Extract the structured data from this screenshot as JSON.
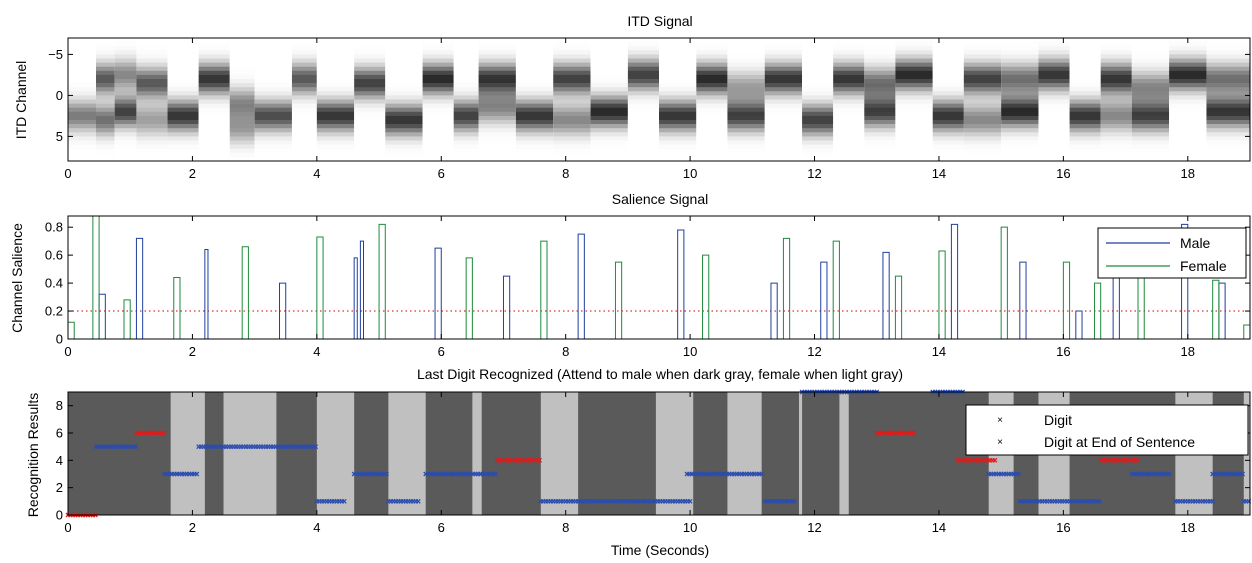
{
  "chart_data": [
    {
      "type": "heatmap",
      "title": "ITD Signal",
      "ylabel": "ITD Channel",
      "xlabel": "",
      "xlim": [
        0,
        19
      ],
      "ylim": [
        -7,
        8
      ],
      "y_reversed": true,
      "colormap": "grayscale (dark = high)",
      "xticks": [
        0,
        2,
        4,
        6,
        8,
        10,
        12,
        14,
        16,
        18
      ],
      "yticks": [
        -5,
        0,
        5
      ],
      "segments": [
        {
          "start": 0.0,
          "end": 0.45,
          "peaks": [
            [
              2.5,
              0.55
            ]
          ]
        },
        {
          "start": 0.45,
          "end": 0.75,
          "peaks": [
            [
              -2.0,
              0.7
            ],
            [
              3.0,
              0.6
            ]
          ]
        },
        {
          "start": 0.75,
          "end": 1.1,
          "peaks": [
            [
              2.0,
              0.8
            ],
            [
              -2.5,
              0.5
            ]
          ]
        },
        {
          "start": 1.1,
          "end": 1.6,
          "peaks": [
            [
              -1.5,
              0.7
            ],
            [
              3.0,
              0.4
            ]
          ]
        },
        {
          "start": 1.6,
          "end": 2.1,
          "peaks": [
            [
              2.5,
              0.85
            ]
          ]
        },
        {
          "start": 2.1,
          "end": 2.6,
          "peaks": [
            [
              -2.0,
              0.85
            ]
          ]
        },
        {
          "start": 2.6,
          "end": 3.0,
          "peaks": [
            [
              1.0,
              0.5
            ],
            [
              4.0,
              0.4
            ]
          ]
        },
        {
          "start": 3.0,
          "end": 3.6,
          "peaks": [
            [
              2.5,
              0.75
            ]
          ]
        },
        {
          "start": 3.6,
          "end": 4.0,
          "peaks": [
            [
              -2.0,
              0.7
            ]
          ]
        },
        {
          "start": 4.0,
          "end": 4.6,
          "peaks": [
            [
              2.5,
              0.85
            ]
          ]
        },
        {
          "start": 4.6,
          "end": 5.1,
          "peaks": [
            [
              -1.5,
              0.8
            ]
          ]
        },
        {
          "start": 5.1,
          "end": 5.7,
          "peaks": [
            [
              3.0,
              0.85
            ]
          ]
        },
        {
          "start": 5.7,
          "end": 6.2,
          "peaks": [
            [
              -2.0,
              0.9
            ]
          ]
        },
        {
          "start": 6.2,
          "end": 6.6,
          "peaks": [
            [
              2.5,
              0.8
            ]
          ]
        },
        {
          "start": 6.6,
          "end": 7.2,
          "peaks": [
            [
              -2.0,
              0.85
            ],
            [
              1.5,
              0.5
            ]
          ]
        },
        {
          "start": 7.2,
          "end": 7.8,
          "peaks": [
            [
              2.5,
              0.85
            ]
          ]
        },
        {
          "start": 7.8,
          "end": 8.4,
          "peaks": [
            [
              -2.0,
              0.8
            ],
            [
              3.0,
              0.5
            ]
          ]
        },
        {
          "start": 8.4,
          "end": 9.0,
          "peaks": [
            [
              2.0,
              0.9
            ]
          ]
        },
        {
          "start": 9.0,
          "end": 9.5,
          "peaks": [
            [
              -2.5,
              0.8
            ]
          ]
        },
        {
          "start": 9.5,
          "end": 10.1,
          "peaks": [
            [
              2.5,
              0.85
            ]
          ]
        },
        {
          "start": 10.1,
          "end": 10.6,
          "peaks": [
            [
              -2.0,
              0.9
            ]
          ]
        },
        {
          "start": 10.6,
          "end": 11.2,
          "peaks": [
            [
              2.5,
              0.8
            ],
            [
              -1.0,
              0.4
            ]
          ]
        },
        {
          "start": 11.2,
          "end": 11.8,
          "peaks": [
            [
              -2.0,
              0.85
            ]
          ]
        },
        {
          "start": 11.8,
          "end": 12.3,
          "peaks": [
            [
              3.0,
              0.8
            ]
          ]
        },
        {
          "start": 12.3,
          "end": 12.8,
          "peaks": [
            [
              -2.0,
              0.85
            ]
          ]
        },
        {
          "start": 12.8,
          "end": 13.3,
          "peaks": [
            [
              2.0,
              0.8
            ],
            [
              -1.5,
              0.6
            ]
          ]
        },
        {
          "start": 13.3,
          "end": 13.9,
          "peaks": [
            [
              -2.5,
              0.9
            ]
          ]
        },
        {
          "start": 13.9,
          "end": 14.4,
          "peaks": [
            [
              2.5,
              0.85
            ]
          ]
        },
        {
          "start": 14.4,
          "end": 15.0,
          "peaks": [
            [
              -2.0,
              0.8
            ],
            [
              3.0,
              0.5
            ]
          ]
        },
        {
          "start": 15.0,
          "end": 15.6,
          "peaks": [
            [
              2.0,
              0.9
            ],
            [
              -2.0,
              0.6
            ]
          ]
        },
        {
          "start": 15.6,
          "end": 16.1,
          "peaks": [
            [
              -2.5,
              0.85
            ]
          ]
        },
        {
          "start": 16.1,
          "end": 16.6,
          "peaks": [
            [
              2.5,
              0.85
            ]
          ]
        },
        {
          "start": 16.6,
          "end": 17.1,
          "peaks": [
            [
              -2.0,
              0.85
            ],
            [
              2.5,
              0.5
            ]
          ]
        },
        {
          "start": 17.1,
          "end": 17.7,
          "peaks": [
            [
              2.5,
              0.8
            ],
            [
              -1.0,
              0.5
            ]
          ]
        },
        {
          "start": 17.7,
          "end": 18.3,
          "peaks": [
            [
              -2.5,
              0.9
            ]
          ]
        },
        {
          "start": 18.3,
          "end": 19.0,
          "peaks": [
            [
              2.0,
              0.85
            ],
            [
              -2.0,
              0.6
            ]
          ]
        }
      ]
    },
    {
      "type": "line",
      "title": "Salience Signal",
      "ylabel": "Channel Salience",
      "xlabel": "",
      "xlim": [
        0,
        19
      ],
      "ylim": [
        0,
        0.88
      ],
      "xticks": [
        0,
        2,
        4,
        6,
        8,
        10,
        12,
        14,
        16,
        18
      ],
      "yticks": [
        0,
        0.2,
        0.4,
        0.6,
        0.8
      ],
      "threshold": 0.2,
      "threshold_color": "#cc0000",
      "legend": "top-right",
      "series": [
        {
          "name": "Male",
          "color": "#1f3f9e",
          "pulses": [
            [
              0.5,
              0.6,
              0.32
            ],
            [
              1.1,
              1.2,
              0.72
            ],
            [
              2.2,
              2.25,
              0.64
            ],
            [
              3.4,
              3.5,
              0.4
            ],
            [
              4.6,
              4.65,
              0.58
            ],
            [
              4.7,
              4.75,
              0.7
            ],
            [
              5.9,
              6.0,
              0.65
            ],
            [
              7.0,
              7.1,
              0.45
            ],
            [
              8.2,
              8.3,
              0.75
            ],
            [
              9.8,
              9.9,
              0.78
            ],
            [
              11.3,
              11.4,
              0.4
            ],
            [
              12.1,
              12.2,
              0.55
            ],
            [
              13.1,
              13.2,
              0.62
            ],
            [
              14.2,
              14.3,
              0.82
            ],
            [
              15.3,
              15.4,
              0.55
            ],
            [
              16.2,
              16.3,
              0.2
            ],
            [
              16.8,
              16.9,
              0.5
            ],
            [
              17.9,
              18.0,
              0.82
            ],
            [
              18.5,
              18.6,
              0.4
            ]
          ]
        },
        {
          "name": "Female",
          "color": "#1e8a3c",
          "pulses": [
            [
              0.0,
              0.1,
              0.12
            ],
            [
              0.4,
              0.5,
              0.88
            ],
            [
              0.9,
              1.0,
              0.28
            ],
            [
              1.7,
              1.8,
              0.44
            ],
            [
              2.8,
              2.9,
              0.66
            ],
            [
              4.0,
              4.1,
              0.73
            ],
            [
              5.0,
              5.1,
              0.82
            ],
            [
              6.4,
              6.5,
              0.58
            ],
            [
              7.6,
              7.7,
              0.7
            ],
            [
              8.8,
              8.9,
              0.55
            ],
            [
              10.2,
              10.3,
              0.6
            ],
            [
              11.5,
              11.6,
              0.72
            ],
            [
              12.3,
              12.4,
              0.7
            ],
            [
              13.3,
              13.4,
              0.45
            ],
            [
              14.0,
              14.1,
              0.63
            ],
            [
              15.0,
              15.1,
              0.8
            ],
            [
              16.0,
              16.1,
              0.55
            ],
            [
              16.5,
              16.6,
              0.4
            ],
            [
              17.2,
              17.3,
              0.44
            ],
            [
              18.4,
              18.5,
              0.42
            ],
            [
              18.9,
              19.0,
              0.1
            ]
          ]
        }
      ]
    },
    {
      "type": "scatter",
      "title": "Last Digit Recognized (Attend to male when dark gray, female when light gray)",
      "xlabel": "Time (Seconds)",
      "ylabel": "Recognition Results",
      "xlim": [
        0,
        19
      ],
      "ylim": [
        0,
        9
      ],
      "xticks": [
        0,
        2,
        4,
        6,
        8,
        10,
        12,
        14,
        16,
        18
      ],
      "yticks": [
        0,
        2,
        4,
        6,
        8
      ],
      "legend": "top-right",
      "background_bands": {
        "dark_color": "#5a5a5a",
        "light_color": "#c0c0c0",
        "light_intervals": [
          [
            1.65,
            2.2
          ],
          [
            2.5,
            3.35
          ],
          [
            4.0,
            4.6
          ],
          [
            5.15,
            5.75
          ],
          [
            6.5,
            6.65
          ],
          [
            7.6,
            8.2
          ],
          [
            9.45,
            10.05
          ],
          [
            10.6,
            11.15
          ],
          [
            11.75,
            11.8
          ],
          [
            12.4,
            12.55
          ],
          [
            14.8,
            15.2
          ],
          [
            15.6,
            16.1
          ],
          [
            17.8,
            18.4
          ],
          [
            18.9,
            19.0
          ]
        ]
      },
      "series": [
        {
          "name": "Digit",
          "color": "#2a4cb0",
          "segments": [
            [
              0.45,
              1.1,
              5
            ],
            [
              1.55,
              2.1,
              3
            ],
            [
              2.1,
              4.0,
              5
            ],
            [
              4.0,
              4.45,
              1
            ],
            [
              4.6,
              5.15,
              3
            ],
            [
              5.15,
              5.65,
              1
            ],
            [
              5.75,
              6.9,
              3
            ],
            [
              7.6,
              10.0,
              1
            ],
            [
              9.95,
              11.15,
              3
            ],
            [
              11.2,
              11.7,
              1
            ],
            [
              11.8,
              13.0,
              9
            ],
            [
              13.9,
              14.4,
              9
            ],
            [
              14.8,
              15.3,
              3
            ],
            [
              15.3,
              16.6,
              1
            ],
            [
              17.1,
              17.7,
              3
            ],
            [
              17.8,
              18.4,
              1
            ],
            [
              18.4,
              18.9,
              3
            ],
            [
              18.9,
              19.0,
              1
            ]
          ]
        },
        {
          "name": "Digit at End of Sentence",
          "color": "#e01b1b",
          "segments": [
            [
              0.0,
              0.45,
              0
            ],
            [
              1.1,
              1.55,
              6
            ],
            [
              6.9,
              7.6,
              4
            ],
            [
              13.0,
              13.6,
              6
            ],
            [
              14.3,
              14.9,
              4
            ],
            [
              16.6,
              17.2,
              4
            ]
          ]
        }
      ]
    }
  ]
}
